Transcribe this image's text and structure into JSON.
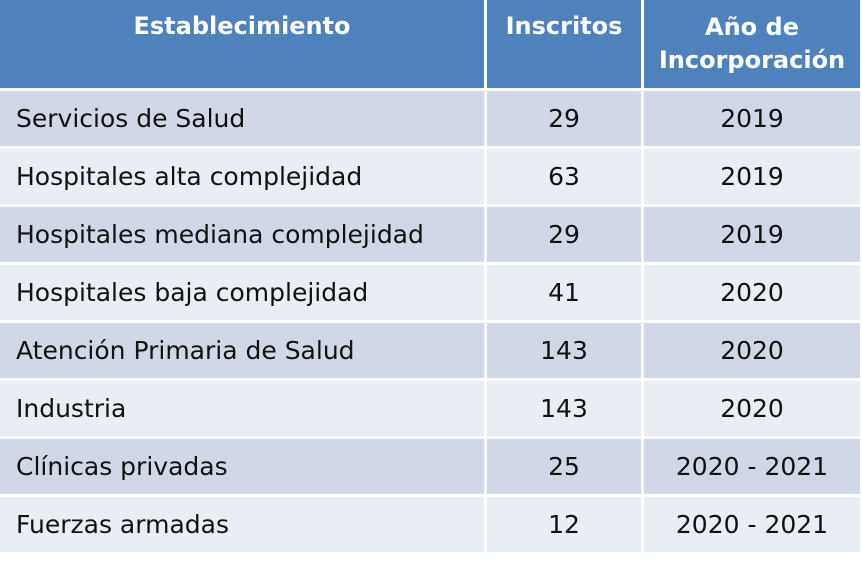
{
  "table": {
    "headers": {
      "establecimiento": "Establecimiento",
      "inscritos": "Inscritos",
      "anio_line1": "Año de",
      "anio_line2": "Incorporación"
    },
    "rows": [
      {
        "establecimiento": "Servicios de Salud",
        "inscritos": "29",
        "anio": "2019"
      },
      {
        "establecimiento": "Hospitales alta complejidad",
        "inscritos": "63",
        "anio": "2019"
      },
      {
        "establecimiento": "Hospitales mediana complejidad",
        "inscritos": "29",
        "anio": "2019"
      },
      {
        "establecimiento": "Hospitales baja complejidad",
        "inscritos": "41",
        "anio": "2020"
      },
      {
        "establecimiento": "Atención Primaria de Salud",
        "inscritos": "143",
        "anio": "2020"
      },
      {
        "establecimiento": "Industria",
        "inscritos": "143",
        "anio": "2020"
      },
      {
        "establecimiento": "Clínicas privadas",
        "inscritos": "25",
        "anio": "2020 - 2021"
      },
      {
        "establecimiento": "Fuerzas armadas",
        "inscritos": "12",
        "anio": "2020 - 2021"
      }
    ]
  },
  "colors": {
    "header_bg": "#4f81bd",
    "row_odd_bg": "#d0d8e8",
    "row_even_bg": "#e9edf4"
  }
}
